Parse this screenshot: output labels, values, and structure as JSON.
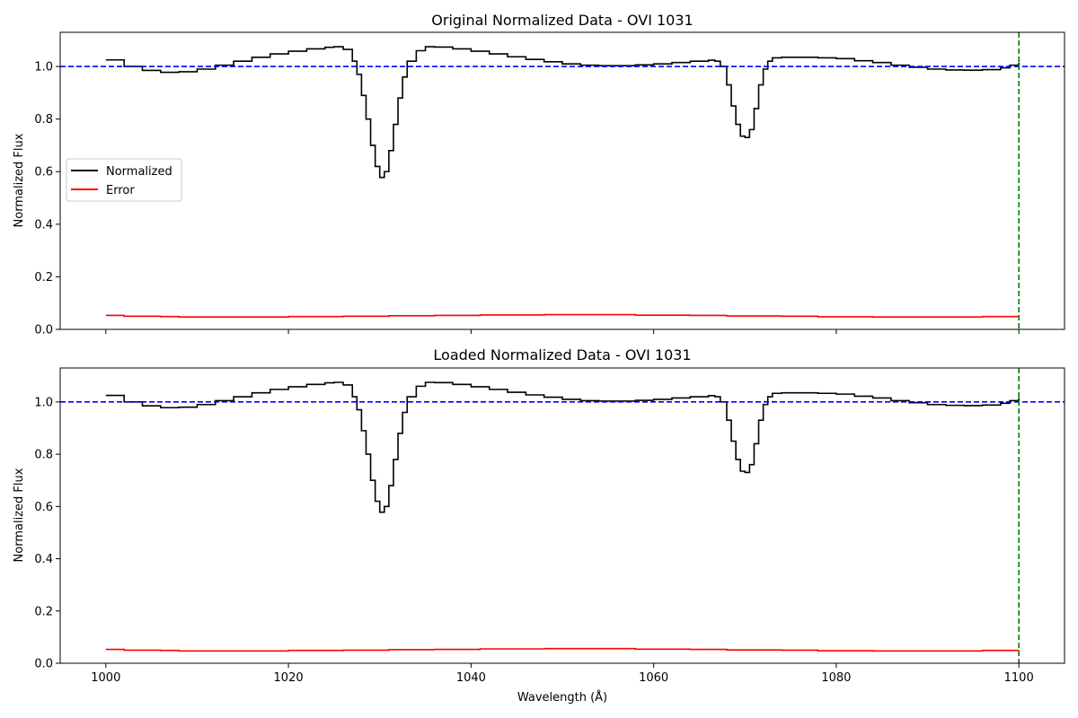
{
  "chart_data": {
    "type": "line",
    "shared_x": true,
    "xlabel": "Wavelength (Å)",
    "xlim": [
      995,
      1105
    ],
    "x_ticks": [
      1000,
      1020,
      1040,
      1060,
      1080,
      1100
    ],
    "x_tick_labels": [
      "1000",
      "1020",
      "1040",
      "1060",
      "1080",
      "1100"
    ],
    "reference_lines": [
      {
        "name": "continuum level",
        "orientation": "horizontal",
        "value": 1.0,
        "color": "#0000ff",
        "style": "dashed"
      },
      {
        "name": "window edge",
        "orientation": "vertical",
        "value": 1100,
        "color": "#008000",
        "style": "dashed"
      }
    ],
    "panels": [
      {
        "id": "original",
        "title": "Original Normalized Data - OVI 1031",
        "ylabel": "Normalized Flux",
        "ylim": [
          0,
          1.13
        ],
        "y_ticks": [
          0,
          0.2,
          0.4,
          0.6,
          0.8,
          1.0
        ],
        "y_tick_labels": [
          "0.0",
          "0.2",
          "0.4",
          "0.6",
          "0.8",
          "1.0"
        ],
        "legend": {
          "position": "center-left",
          "entries": [
            {
              "label": "Normalized",
              "color": "#000000"
            },
            {
              "label": "Error",
              "color": "#ff0000"
            }
          ]
        },
        "series": [
          {
            "name": "Normalized",
            "color": "#000000",
            "drawstyle": "steps",
            "x": [
              1000,
              1002,
              1004,
              1006,
              1008,
              1010,
              1012,
              1014,
              1016,
              1018,
              1020,
              1022,
              1024,
              1025,
              1026,
              1027,
              1027.5,
              1028,
              1028.5,
              1029,
              1029.5,
              1030,
              1030.5,
              1031,
              1031.5,
              1032,
              1032.5,
              1033,
              1034,
              1035,
              1036,
              1038,
              1040,
              1042,
              1044,
              1046,
              1048,
              1050,
              1052,
              1054,
              1056,
              1058,
              1060,
              1062,
              1064,
              1066,
              1066.7,
              1067.3,
              1068,
              1068.5,
              1069,
              1069.5,
              1070,
              1070.5,
              1071,
              1071.5,
              1072,
              1072.5,
              1073,
              1074,
              1076,
              1078,
              1080,
              1082,
              1084,
              1086,
              1088,
              1090,
              1092,
              1094,
              1096,
              1098,
              1099,
              1100
            ],
            "y": [
              1.025,
              1.0,
              0.985,
              0.978,
              0.98,
              0.99,
              1.005,
              1.02,
              1.035,
              1.048,
              1.058,
              1.067,
              1.073,
              1.075,
              1.065,
              1.02,
              0.97,
              0.89,
              0.8,
              0.7,
              0.62,
              0.578,
              0.6,
              0.68,
              0.78,
              0.88,
              0.96,
              1.02,
              1.06,
              1.075,
              1.074,
              1.067,
              1.058,
              1.048,
              1.037,
              1.027,
              1.018,
              1.01,
              1.005,
              1.003,
              1.003,
              1.006,
              1.01,
              1.015,
              1.02,
              1.024,
              1.02,
              1.0,
              0.93,
              0.85,
              0.78,
              0.735,
              0.73,
              0.76,
              0.84,
              0.93,
              0.99,
              1.02,
              1.033,
              1.035,
              1.035,
              1.033,
              1.03,
              1.022,
              1.015,
              1.005,
              0.997,
              0.99,
              0.987,
              0.986,
              0.988,
              0.995,
              1.005,
              1.015
            ]
          },
          {
            "name": "Error",
            "color": "#ff0000",
            "drawstyle": "steps",
            "x": [
              1000,
              1002,
              1006,
              1008,
              1014,
              1020,
              1026,
              1031,
              1036,
              1041,
              1048,
              1052,
              1058,
              1064,
              1068,
              1074,
              1078,
              1084,
              1090,
              1096,
              1100
            ],
            "y": [
              0.053,
              0.05,
              0.049,
              0.047,
              0.047,
              0.049,
              0.05,
              0.052,
              0.053,
              0.055,
              0.056,
              0.056,
              0.054,
              0.053,
              0.051,
              0.05,
              0.048,
              0.047,
              0.047,
              0.049,
              0.05
            ]
          }
        ]
      },
      {
        "id": "loaded",
        "title": "Loaded Normalized Data - OVI 1031",
        "ylabel": "Normalized Flux",
        "ylim": [
          0,
          1.13
        ],
        "y_ticks": [
          0,
          0.2,
          0.4,
          0.6,
          0.8,
          1.0
        ],
        "y_tick_labels": [
          "0.0",
          "0.2",
          "0.4",
          "0.6",
          "0.8",
          "1.0"
        ],
        "series": [
          {
            "name": "Normalized",
            "color": "#000000",
            "drawstyle": "steps",
            "x": [
              1000,
              1002,
              1004,
              1006,
              1008,
              1010,
              1012,
              1014,
              1016,
              1018,
              1020,
              1022,
              1024,
              1025,
              1026,
              1027,
              1027.5,
              1028,
              1028.5,
              1029,
              1029.5,
              1030,
              1030.5,
              1031,
              1031.5,
              1032,
              1032.5,
              1033,
              1034,
              1035,
              1036,
              1038,
              1040,
              1042,
              1044,
              1046,
              1048,
              1050,
              1052,
              1054,
              1056,
              1058,
              1060,
              1062,
              1064,
              1066,
              1066.7,
              1067.3,
              1068,
              1068.5,
              1069,
              1069.5,
              1070,
              1070.5,
              1071,
              1071.5,
              1072,
              1072.5,
              1073,
              1074,
              1076,
              1078,
              1080,
              1082,
              1084,
              1086,
              1088,
              1090,
              1092,
              1094,
              1096,
              1098,
              1099,
              1100
            ],
            "y": [
              1.025,
              1.0,
              0.985,
              0.978,
              0.98,
              0.99,
              1.005,
              1.02,
              1.035,
              1.048,
              1.058,
              1.067,
              1.073,
              1.075,
              1.065,
              1.02,
              0.97,
              0.89,
              0.8,
              0.7,
              0.62,
              0.578,
              0.6,
              0.68,
              0.78,
              0.88,
              0.96,
              1.02,
              1.06,
              1.075,
              1.074,
              1.067,
              1.058,
              1.048,
              1.037,
              1.027,
              1.018,
              1.01,
              1.005,
              1.003,
              1.003,
              1.006,
              1.01,
              1.015,
              1.02,
              1.024,
              1.02,
              1.0,
              0.93,
              0.85,
              0.78,
              0.735,
              0.73,
              0.76,
              0.84,
              0.93,
              0.99,
              1.02,
              1.033,
              1.035,
              1.035,
              1.033,
              1.03,
              1.022,
              1.015,
              1.005,
              0.997,
              0.99,
              0.987,
              0.986,
              0.988,
              0.995,
              1.005,
              1.015
            ]
          },
          {
            "name": "Error",
            "color": "#ff0000",
            "drawstyle": "steps",
            "x": [
              1000,
              1002,
              1006,
              1008,
              1014,
              1020,
              1026,
              1031,
              1036,
              1041,
              1048,
              1052,
              1058,
              1064,
              1068,
              1074,
              1078,
              1084,
              1090,
              1096,
              1100
            ],
            "y": [
              0.053,
              0.05,
              0.049,
              0.047,
              0.047,
              0.049,
              0.05,
              0.052,
              0.053,
              0.055,
              0.056,
              0.056,
              0.054,
              0.053,
              0.051,
              0.05,
              0.048,
              0.047,
              0.047,
              0.049,
              0.05
            ]
          }
        ]
      }
    ]
  }
}
